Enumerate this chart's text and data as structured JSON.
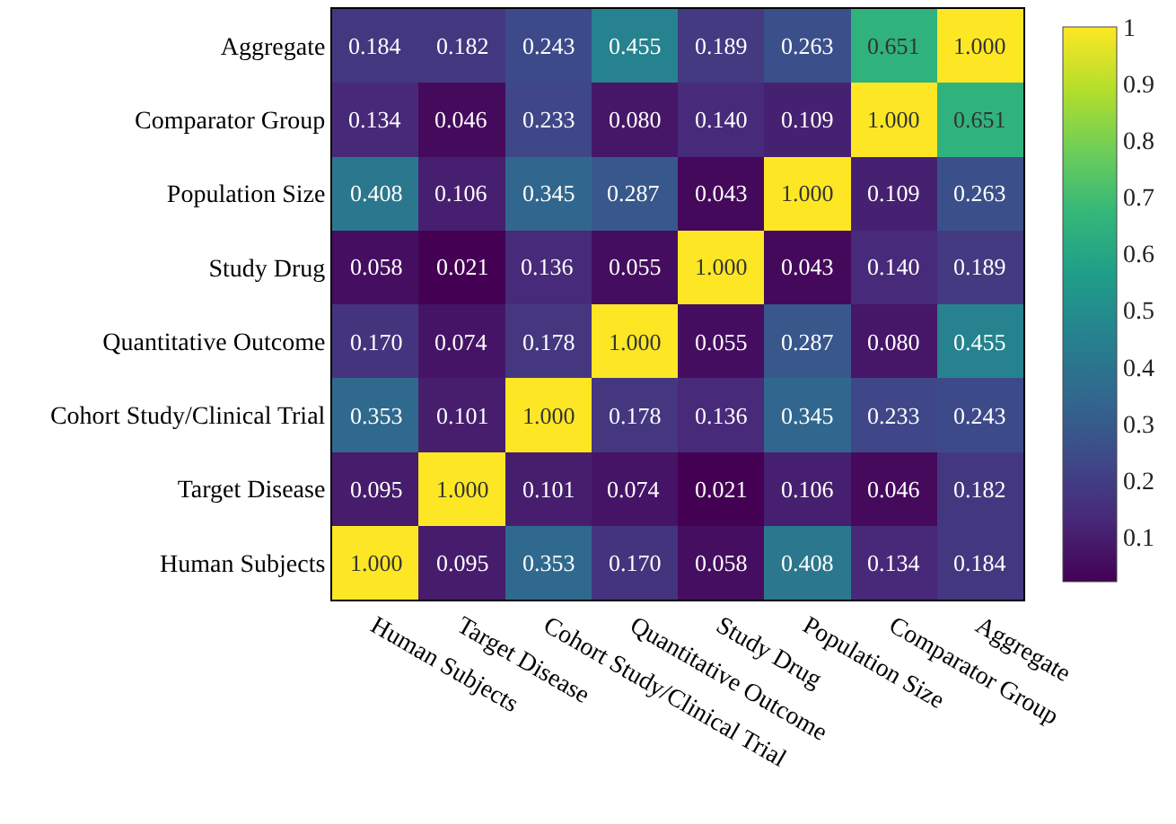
{
  "chart_data": {
    "type": "heatmap",
    "categories": [
      "Human Subjects",
      "Target Disease",
      "Cohort Study/Clinical Trial",
      "Quantitative Outcome",
      "Study Drug",
      "Population Size",
      "Comparator Group",
      "Aggregate"
    ],
    "y_categories": [
      "Aggregate",
      "Comparator Group",
      "Population Size",
      "Study Drug",
      "Quantitative Outcome",
      "Cohort Study/Clinical Trial",
      "Target Disease",
      "Human Subjects"
    ],
    "cells": [
      [
        0.184,
        0.182,
        0.243,
        0.455,
        0.189,
        0.263,
        0.651,
        1.0
      ],
      [
        0.134,
        0.046,
        0.233,
        0.08,
        0.14,
        0.109,
        1.0,
        0.651
      ],
      [
        0.408,
        0.106,
        0.345,
        0.287,
        0.043,
        1.0,
        0.109,
        0.263
      ],
      [
        0.058,
        0.021,
        0.136,
        0.055,
        1.0,
        0.043,
        0.14,
        0.189
      ],
      [
        0.17,
        0.074,
        0.178,
        1.0,
        0.055,
        0.287,
        0.08,
        0.455
      ],
      [
        0.353,
        0.101,
        1.0,
        0.178,
        0.136,
        0.345,
        0.233,
        0.243
      ],
      [
        0.095,
        1.0,
        0.101,
        0.074,
        0.021,
        0.106,
        0.046,
        0.182
      ],
      [
        1.0,
        0.095,
        0.353,
        0.17,
        0.058,
        0.408,
        0.134,
        0.184
      ]
    ],
    "cell_labels": [
      [
        "0.184",
        "0.182",
        "0.243",
        "0.455",
        "0.189",
        "0.263",
        "0.651",
        "1.000"
      ],
      [
        "0.134",
        "0.046",
        "0.233",
        "0.080",
        "0.140",
        "0.109",
        "1.000",
        "0.651"
      ],
      [
        "0.408",
        "0.106",
        "0.345",
        "0.287",
        "0.043",
        "1.000",
        "0.109",
        "0.263"
      ],
      [
        "0.058",
        "0.021",
        "0.136",
        "0.055",
        "1.000",
        "0.043",
        "0.140",
        "0.189"
      ],
      [
        "0.170",
        "0.074",
        "0.178",
        "1.000",
        "0.055",
        "0.287",
        "0.080",
        "0.455"
      ],
      [
        "0.353",
        "0.101",
        "1.000",
        "0.178",
        "0.136",
        "0.345",
        "0.233",
        "0.243"
      ],
      [
        "0.095",
        "1.000",
        "0.101",
        "0.074",
        "0.021",
        "0.106",
        "0.046",
        "0.182"
      ],
      [
        "1.000",
        "0.095",
        "0.353",
        "0.170",
        "0.058",
        "0.408",
        "0.134",
        "0.184"
      ]
    ],
    "clim": [
      0.021,
      1
    ],
    "cticks": [
      0.1,
      0.2,
      0.3,
      0.4,
      0.5,
      0.6,
      0.7,
      0.8,
      0.9,
      1
    ],
    "data_labels": true
  }
}
